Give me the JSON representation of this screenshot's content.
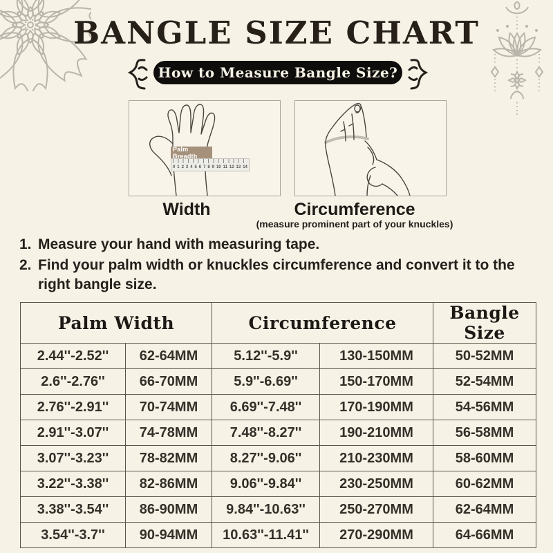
{
  "header": {
    "title": "BANGLE SIZE CHART",
    "pill": "How to Measure Bangle Size?"
  },
  "figures": {
    "width": {
      "caption": "Width",
      "tag": "Palm Breadth",
      "ruler_numbers": [
        "0",
        "1",
        "2",
        "3",
        "4",
        "5",
        "6",
        "7",
        "8",
        "9",
        "10",
        "11",
        "12",
        "13",
        "14"
      ]
    },
    "circumference": {
      "caption": "Circumference",
      "note": "(measure prominent part of your knuckles)"
    }
  },
  "instructions": [
    {
      "num": "1.",
      "text": "Measure your hand with measuring tape."
    },
    {
      "num": "2.",
      "text": "Find your palm width or knuckles circumference and convert it to the\nright bangle size."
    }
  ],
  "table": {
    "headers": [
      "Palm Width",
      "Circumference",
      "Bangle Size"
    ],
    "rows": [
      [
        "2.44''-2.52''",
        "62-64MM",
        "5.12''-5.9''",
        "130-150MM",
        "50-52MM"
      ],
      [
        "2.6''-2.76''",
        "66-70MM",
        "5.9''-6.69''",
        "150-170MM",
        "52-54MM"
      ],
      [
        "2.76''-2.91''",
        "70-74MM",
        "6.69''-7.48''",
        "170-190MM",
        "54-56MM"
      ],
      [
        "2.91''-3.07''",
        "74-78MM",
        "7.48''-8.27''",
        "190-210MM",
        "56-58MM"
      ],
      [
        "3.07''-3.23''",
        "78-82MM",
        "8.27''-9.06''",
        "210-230MM",
        "58-60MM"
      ],
      [
        "3.22''-3.38''",
        "82-86MM",
        "9.06''-9.84''",
        "230-250MM",
        "60-62MM"
      ],
      [
        "3.38''-3.54''",
        "86-90MM",
        "9.84''-10.63''",
        "250-270MM",
        "62-64MM"
      ],
      [
        "3.54''-3.7''",
        "90-94MM",
        "10.63''-11.41''",
        "270-290MM",
        "64-66MM"
      ]
    ]
  },
  "icons": {
    "top_left": "mandala-icon",
    "top_right": "lotus-hanging-icon",
    "pill_sides": "squiggle-icon"
  },
  "colors": {
    "background": "#f6f2e6",
    "ink": "#26211c",
    "pill_bg": "#0e0d0b",
    "pill_text": "#f6f2e6",
    "table_border": "#59544b",
    "ornament_gray": "#bab5aa",
    "tag_bg": "#a5917b"
  }
}
